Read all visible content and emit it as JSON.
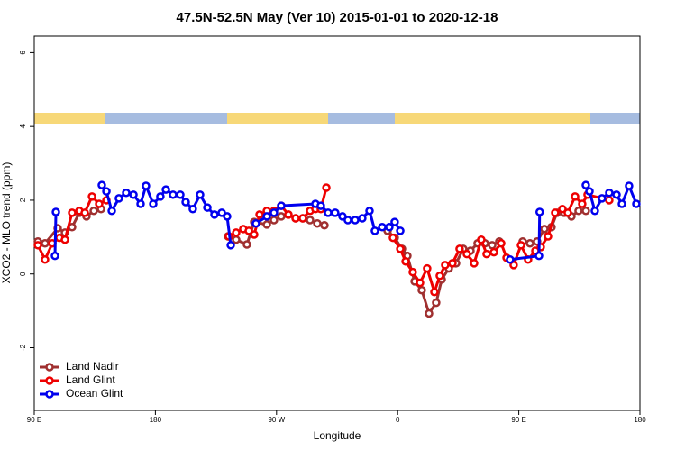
{
  "chart_data": {
    "type": "line",
    "title": "47.5N-52.5N May (Ver 10)   2015-01-01 to 2020-12-18",
    "x_label": "Longitude",
    "y_label": "XCO2 - MLO trend (ppm)",
    "xlim": [
      90,
      540
    ],
    "ylim": [
      -3.7,
      6.45
    ],
    "xticks": [
      {
        "value": 90,
        "label": "90 E"
      },
      180,
      {
        "value": 270,
        "label": "90 W"
      },
      {
        "value": 360,
        "label": "0"
      },
      {
        "value": 450,
        "label": "90 E"
      },
      {
        "value": 540,
        "label": "180"
      }
    ],
    "yticks": [
      -2,
      0,
      2,
      4,
      6
    ],
    "legend": "bottom-left",
    "series": [
      {
        "name": "Land Nadir",
        "color": "#a03030",
        "x": [
          92.7,
          98,
          107.4,
          112.8,
          118.1,
          123.5,
          128.8,
          134.2,
          139.6,
          null,
          234,
          240,
          248,
          253.4,
          262.8,
          268.1,
          273.5,
          278.8,
          284.2,
          289.5,
          294.9,
          300.3,
          305.6,
          null,
          352.5,
          357.8,
          363.2,
          367.2,
          372.6,
          377.9,
          383.3,
          388.6,
          392.7,
          398,
          403.4,
          408.7,
          414.1,
          419.4,
          424.8,
          430.2,
          435.5,
          null,
          452.9,
          458.3,
          463.6,
          469,
          474.3,
          478.4,
          483.7,
          489.1,
          494.4,
          499.8
        ],
        "values": [
          0.88,
          0.83,
          1.24,
          1.12,
          1.27,
          1.66,
          1.56,
          1.71,
          1.76,
          null,
          1.02,
          0.93,
          0.8,
          1.41,
          1.34,
          1.46,
          1.56,
          1.61,
          1.51,
          1.51,
          1.46,
          1.37,
          1.32,
          null,
          1.17,
          0.98,
          0.68,
          0.49,
          -0.2,
          -0.44,
          -1.07,
          -0.78,
          -0.15,
          0.15,
          0.29,
          0.68,
          0.63,
          0.83,
          0.83,
          0.78,
          0.88,
          null,
          0.88,
          0.83,
          0.88,
          1.22,
          1.27,
          1.66,
          1.66,
          1.56,
          1.71,
          1.71
        ]
      },
      {
        "name": "Land Glint",
        "color": "#ee0000",
        "x": [
          92.7,
          98,
          103.4,
          108.7,
          112.8,
          118.1,
          123.5,
          127.5,
          132.9,
          138.2,
          143.6,
          null,
          234.6,
          240,
          245.3,
          249.4,
          253.4,
          257.4,
          262.8,
          268.1,
          273.5,
          278.8,
          284.2,
          289.5,
          294.9,
          298.9,
          302.9,
          307,
          null,
          356.5,
          361.9,
          365.9,
          371.2,
          376.6,
          381.9,
          387.3,
          391.3,
          395.3,
          400.7,
          406,
          411.4,
          416.8,
          422.1,
          426.1,
          431.5,
          436.9,
          440.9,
          446.2,
          451.6,
          456.9,
          462.3,
          466.3,
          471.7,
          477,
          482.4,
          486.4,
          491.8,
          497.1,
          501.1,
          517.2
        ],
        "values": [
          0.78,
          0.39,
          0.83,
          0.98,
          0.93,
          1.66,
          1.71,
          1.66,
          2.1,
          1.9,
          2.0,
          null,
          1.02,
          1.12,
          1.22,
          1.17,
          1.07,
          1.61,
          1.71,
          1.71,
          1.85,
          1.61,
          1.51,
          1.51,
          1.71,
          1.76,
          1.76,
          2.34,
          null,
          0.98,
          0.68,
          0.34,
          0.05,
          -0.24,
          0.15,
          -0.49,
          -0.05,
          0.24,
          0.29,
          0.68,
          0.54,
          0.29,
          0.93,
          0.54,
          0.59,
          0.83,
          0.44,
          0.24,
          0.78,
          0.39,
          0.63,
          0.73,
          1.02,
          1.66,
          1.76,
          1.66,
          2.1,
          1.9,
          2.15,
          2.0
        ]
      },
      {
        "name": "Ocean Glint",
        "color": "#0000ee",
        "x": [
          105.4,
          106.1,
          null,
          140.2,
          143.6,
          147.6,
          152.9,
          158.3,
          163.7,
          169,
          173,
          178.4,
          183.7,
          187.8,
          193.1,
          198.5,
          202.5,
          207.8,
          213.2,
          218.6,
          223.9,
          229.3,
          233.3,
          236,
          null,
          254.7,
          262.8,
          268.1,
          273.5,
          298.9,
          302.9,
          308.3,
          313.6,
          319,
          323,
          328.4,
          333.7,
          339.1,
          343.1,
          348.5,
          353.8,
          357.8,
          361.9,
          null,
          443.5,
          465,
          465.5,
          null,
          499.8,
          502.5,
          506.5,
          511.8,
          517.2,
          522.6,
          526.6,
          531.9,
          537.3
        ],
        "values": [
          0.49,
          1.68,
          null,
          2.41,
          2.24,
          1.71,
          2.05,
          2.2,
          2.15,
          1.9,
          2.39,
          1.9,
          2.1,
          2.29,
          2.15,
          2.15,
          1.95,
          1.76,
          2.15,
          1.8,
          1.61,
          1.66,
          1.56,
          0.78,
          null,
          1.37,
          1.56,
          1.66,
          1.85,
          1.9,
          1.85,
          1.66,
          1.66,
          1.56,
          1.46,
          1.46,
          1.51,
          1.71,
          1.17,
          1.27,
          1.27,
          1.41,
          1.17,
          null,
          0.39,
          0.49,
          1.68,
          null,
          2.41,
          2.24,
          1.71,
          2.05,
          2.2,
          2.15,
          1.9,
          2.39,
          1.9
        ]
      }
    ]
  }
}
